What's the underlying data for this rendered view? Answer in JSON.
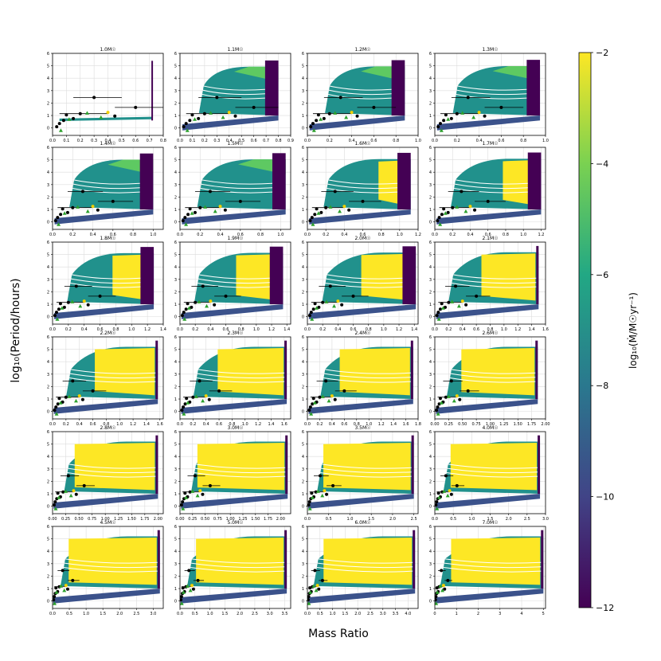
{
  "figure": {
    "ylabel": "log₁₀(Period/hours)",
    "xlabel": "Mass Ratio",
    "colorbar_label": "log₁₀(Ṁ/M☉yr⁻¹)"
  },
  "colors": {
    "yellow": "#fde725",
    "green": "#5ec962",
    "teal": "#21918c",
    "slate": "#3b528b",
    "purple": "#440154",
    "observed_black": "#000000",
    "observed_green": "#2ca02c",
    "observed_yellow": "#f0d000"
  },
  "chart_data": {
    "type": "heatmap",
    "grid": true,
    "ylim": [
      -0.6,
      6
    ],
    "yticks": [
      "0",
      "1",
      "2",
      "3",
      "4",
      "5",
      "6"
    ],
    "colorbar": {
      "range": [
        -12,
        -2
      ],
      "ticks": [
        "-2",
        "-4",
        "-6",
        "-8",
        "-10",
        "-12"
      ]
    },
    "observed_points": {
      "black": [
        [
          0.3,
          2.45
        ],
        [
          0.6,
          1.65
        ],
        [
          0.2,
          1.15
        ],
        [
          0.1,
          1.05
        ],
        [
          0.45,
          0.95
        ],
        [
          0.05,
          0.35
        ],
        [
          0.08,
          0.6
        ],
        [
          0.03,
          0.1
        ],
        [
          0.15,
          0.75
        ]
      ],
      "green": [
        [
          0.12,
          0.7
        ],
        [
          0.25,
          1.2
        ],
        [
          0.35,
          0.85
        ],
        [
          0.06,
          -0.2
        ]
      ],
      "yellow": [
        [
          0.4,
          1.25
        ]
      ]
    },
    "panels": [
      {
        "title": "1.0M☉",
        "xlim": [
          0,
          0.8
        ],
        "xticks": [
          "0.0",
          "0.1",
          "0.2",
          "0.3",
          "0.4",
          "0.5",
          "0.6",
          "0.7",
          "0.8"
        ],
        "qmax": 0.72
      },
      {
        "title": "1.1M☉",
        "xlim": [
          0,
          0.9
        ],
        "xticks": [
          "0.0",
          "0.1",
          "0.2",
          "0.3",
          "0.4",
          "0.5",
          "0.6",
          "0.7",
          "0.8",
          "0.9"
        ],
        "qmax": 0.8
      },
      {
        "title": "1.2M☉",
        "xlim": [
          0,
          1.0
        ],
        "xticks": [
          "0.0",
          "0.2",
          "0.4",
          "0.6",
          "0.8",
          "1.0"
        ],
        "qmax": 0.88
      },
      {
        "title": "1.3M☉",
        "xlim": [
          0,
          1.0
        ],
        "xticks": [
          "0.0",
          "0.2",
          "0.4",
          "0.6",
          "0.8",
          "1.0"
        ],
        "qmax": 0.95
      },
      {
        "title": "1.4M☉",
        "xlim": [
          0,
          1.1
        ],
        "xticks": [
          "0.0",
          "0.2",
          "0.4",
          "0.6",
          "0.8",
          "1.0"
        ],
        "qmax": 1.0
      },
      {
        "title": "1.5M☉",
        "xlim": [
          0,
          1.1
        ],
        "xticks": [
          "0.0",
          "0.2",
          "0.4",
          "0.6",
          "0.8",
          "1.0"
        ],
        "qmax": 1.05
      },
      {
        "title": "1.6M☉",
        "xlim": [
          0,
          1.2
        ],
        "xticks": [
          "0.0",
          "0.2",
          "0.4",
          "0.6",
          "0.8",
          "1.0",
          "1.2"
        ],
        "qmax": 1.12
      },
      {
        "title": "1.7M☉",
        "xlim": [
          0,
          1.25
        ],
        "xticks": [
          "0.0",
          "0.2",
          "0.4",
          "0.6",
          "0.8",
          "1.0",
          "1.2"
        ],
        "qmax": 1.2
      },
      {
        "title": "1.8M☉",
        "xlim": [
          0,
          1.4
        ],
        "xticks": [
          "0.0",
          "0.2",
          "0.4",
          "0.6",
          "0.8",
          "1.0",
          "1.2",
          "1.4"
        ],
        "qmax": 1.28
      },
      {
        "title": "1.9M☉",
        "xlim": [
          0,
          1.45
        ],
        "xticks": [
          "0.0",
          "0.2",
          "0.4",
          "0.6",
          "0.8",
          "1.0",
          "1.2",
          "1.4"
        ],
        "qmax": 1.35
      },
      {
        "title": "2.0M☉",
        "xlim": [
          0,
          1.45
        ],
        "xticks": [
          "0.0",
          "0.2",
          "0.4",
          "0.6",
          "0.8",
          "1.0",
          "1.2",
          "1.4"
        ],
        "qmax": 1.42
      },
      {
        "title": "2.1M☉",
        "xlim": [
          0,
          1.6
        ],
        "xticks": [
          "0.0",
          "0.2",
          "0.4",
          "0.6",
          "0.8",
          "1.0",
          "1.2",
          "1.4",
          "1.6"
        ],
        "qmax": 1.5
      },
      {
        "title": "2.2M☉",
        "xlim": [
          0,
          1.65
        ],
        "xticks": [
          "0.0",
          "0.2",
          "0.4",
          "0.6",
          "0.8",
          "1.0",
          "1.2",
          "1.4",
          "1.6"
        ],
        "qmax": 1.57
      },
      {
        "title": "2.3M☉",
        "xlim": [
          0,
          1.7
        ],
        "xticks": [
          "0.0",
          "0.2",
          "0.4",
          "0.6",
          "0.8",
          "1.0",
          "1.2",
          "1.4",
          "1.6"
        ],
        "qmax": 1.64
      },
      {
        "title": "2.4M☉",
        "xlim": [
          0,
          1.8
        ],
        "xticks": [
          "0.0",
          "0.2",
          "0.4",
          "0.6",
          "0.8",
          "1.0",
          "1.2",
          "1.4",
          "1.6",
          "1.8"
        ],
        "qmax": 1.72
      },
      {
        "title": "2.6M☉",
        "xlim": [
          0,
          2.0
        ],
        "xticks": [
          "0.00",
          "0.25",
          "0.50",
          "0.75",
          "1.00",
          "1.25",
          "1.50",
          "1.75",
          "2.00"
        ],
        "qmax": 1.86
      },
      {
        "title": "2.8M☉",
        "xlim": [
          0,
          2.1
        ],
        "xticks": [
          "0.00",
          "0.25",
          "0.50",
          "0.75",
          "1.00",
          "1.25",
          "1.50",
          "1.75",
          "2.00"
        ],
        "qmax": 2.0
      },
      {
        "title": "3.0M☉",
        "xlim": [
          0,
          2.2
        ],
        "xticks": [
          "0.00",
          "0.25",
          "0.50",
          "0.75",
          "1.00",
          "1.25",
          "1.50",
          "1.75",
          "2.00"
        ],
        "qmax": 2.14
      },
      {
        "title": "3.5M☉",
        "xlim": [
          0,
          2.6
        ],
        "xticks": [
          "0.0",
          "0.5",
          "1.0",
          "1.5",
          "2.0",
          "2.5"
        ],
        "qmax": 2.5
      },
      {
        "title": "4.0M☉",
        "xlim": [
          0,
          3.0
        ],
        "xticks": [
          "0.0",
          "0.5",
          "1.0",
          "1.5",
          "2.0",
          "2.5",
          "3.0"
        ],
        "qmax": 2.85
      },
      {
        "title": "4.5M☉",
        "xlim": [
          0,
          3.3
        ],
        "xticks": [
          "0.0",
          "0.5",
          "1.0",
          "1.5",
          "2.0",
          "2.5",
          "3.0"
        ],
        "qmax": 3.2
      },
      {
        "title": "5.0M☉",
        "xlim": [
          0,
          3.7
        ],
        "xticks": [
          "0.0",
          "0.5",
          "1.0",
          "1.5",
          "2.0",
          "2.5",
          "3.0",
          "3.5"
        ],
        "qmax": 3.57
      },
      {
        "title": "6.0M☉",
        "xlim": [
          0,
          4.4
        ],
        "xticks": [
          "0.0",
          "0.5",
          "1.0",
          "1.5",
          "2.0",
          "2.5",
          "3.0",
          "3.5",
          "4.0"
        ],
        "qmax": 4.28
      },
      {
        "title": "7.0M☉",
        "xlim": [
          0,
          5.1
        ],
        "xticks": [
          "0",
          "1",
          "2",
          "3",
          "4",
          "5"
        ],
        "qmax": 5.0
      }
    ]
  }
}
